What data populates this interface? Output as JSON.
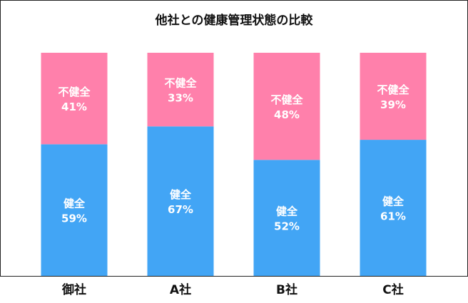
{
  "chart_data": {
    "type": "bar",
    "stacked": true,
    "percent": true,
    "title": "他社との健康管理状態の比較",
    "categories": [
      "御社",
      "A社",
      "B社",
      "C社"
    ],
    "series": [
      {
        "name": "健全",
        "values": [
          59,
          67,
          52,
          61
        ],
        "color": "#42A5F5"
      },
      {
        "name": "不健全",
        "values": [
          41,
          33,
          48,
          39
        ],
        "color": "#FF80AB"
      }
    ],
    "value_suffix": "%",
    "ylim": [
      0,
      100
    ],
    "grid": false,
    "legend": "none"
  }
}
